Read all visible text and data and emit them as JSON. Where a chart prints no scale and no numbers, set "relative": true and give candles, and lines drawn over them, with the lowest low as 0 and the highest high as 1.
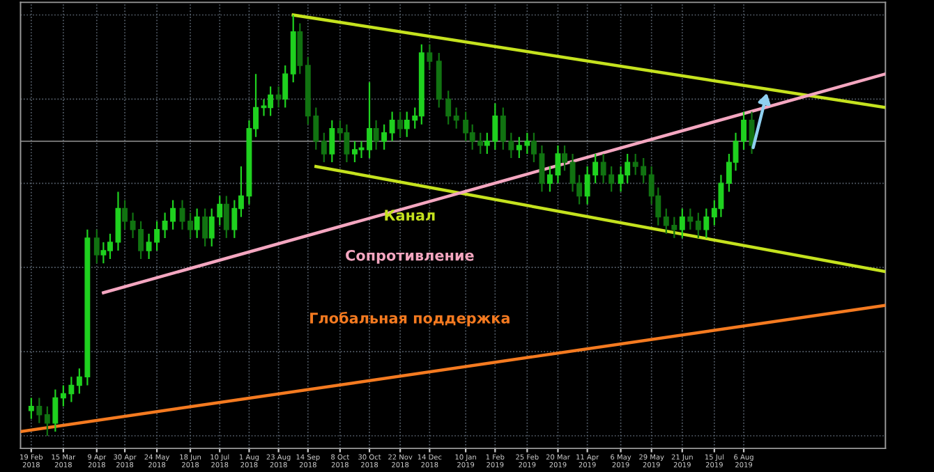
{
  "chart_data": {
    "type": "candlestick",
    "relative": true,
    "colors": [
      "#1fd11f",
      "#117311",
      "#117311",
      "#1fd11f",
      "#1fd11f",
      "#1fd11f",
      "#1fd11f",
      "#1fd11f",
      "#117311",
      "#1fd11f",
      "#1fd11f",
      "#1fd11f",
      "#117311",
      "#117311",
      "#117311",
      "#1fd11f",
      "#1fd11f",
      "#1fd11f",
      "#1fd11f",
      "#117311",
      "#117311",
      "#1fd11f",
      "#117311",
      "#1fd11f",
      "#1fd11f",
      "#117311",
      "#1fd11f",
      "#1fd11f",
      "#1fd11f",
      "#1fd11f",
      "#1fd11f",
      "#1fd11f",
      "#117311",
      "#1fd11f",
      "#1fd11f",
      "#117311",
      "#117311",
      "#117311",
      "#117311",
      "#1fd11f",
      "#117311",
      "#117311",
      "#1fd11f",
      "#1fd11f",
      "#1fd11f",
      "#117311",
      "#1fd11f",
      "#1fd11f",
      "#117311",
      "#1fd11f",
      "#1fd11f",
      "#1fd11f",
      "#117311",
      "#117311",
      "#117311",
      "#117311",
      "#117311",
      "#117311",
      "#117311",
      "#1fd11f",
      "#1fd11f",
      "#117311",
      "#117311",
      "#1fd11f",
      "#1fd11f",
      "#117311",
      "#117311",
      "#1fd11f",
      "#1fd11f",
      "#117311",
      "#117311",
      "#117311",
      "#1fd11f",
      "#1fd11f",
      "#117311",
      "#117311",
      "#1fd11f",
      "#1fd11f",
      "#117311",
      "#117311",
      "#117311",
      "#117311",
      "#117311",
      "#117311",
      "#1fd11f",
      "#117311",
      "#117311",
      "#1fd11f",
      "#1fd11f",
      "#1fd11f",
      "#1fd11f",
      "#1fd11f",
      "#1fd11f",
      "#117311"
    ],
    "x": [
      "2018-02-19",
      "2018-02-25",
      "2018-03-03",
      "2018-03-09",
      "2018-03-15",
      "2018-03-21",
      "2018-03-27",
      "2018-04-02",
      "2018-04-09",
      "2018-04-14",
      "2018-04-19",
      "2018-04-25",
      "2018-04-30",
      "2018-05-06",
      "2018-05-12",
      "2018-05-18",
      "2018-05-24",
      "2018-05-30",
      "2018-06-05",
      "2018-06-12",
      "2018-06-18",
      "2018-06-23",
      "2018-06-29",
      "2018-07-04",
      "2018-07-10",
      "2018-07-15",
      "2018-07-21",
      "2018-07-26",
      "2018-08-01",
      "2018-08-06",
      "2018-08-12",
      "2018-08-17",
      "2018-08-23",
      "2018-08-28",
      "2018-09-03",
      "2018-09-08",
      "2018-09-14",
      "2018-09-20",
      "2018-09-26",
      "2018-10-02",
      "2018-10-08",
      "2018-10-13",
      "2018-10-19",
      "2018-10-24",
      "2018-10-30",
      "2018-11-04",
      "2018-11-10",
      "2018-11-16",
      "2018-11-22",
      "2018-11-27",
      "2018-12-03",
      "2018-12-08",
      "2018-12-14",
      "2018-12-21",
      "2018-12-28",
      "2019-01-03",
      "2019-01-10",
      "2019-01-15",
      "2019-01-21",
      "2019-01-26",
      "2019-02-01",
      "2019-02-07",
      "2019-02-13",
      "2019-02-19",
      "2019-02-25",
      "2019-03-02",
      "2019-03-08",
      "2019-03-14",
      "2019-03-20",
      "2019-03-25",
      "2019-03-31",
      "2019-04-05",
      "2019-04-11",
      "2019-04-17",
      "2019-04-23",
      "2019-04-29",
      "2019-05-06",
      "2019-05-11",
      "2019-05-17",
      "2019-05-23",
      "2019-05-29",
      "2019-06-03",
      "2019-06-09",
      "2019-06-15",
      "2019-06-21",
      "2019-06-27",
      "2019-07-03",
      "2019-07-09",
      "2019-07-15",
      "2019-07-20",
      "2019-07-26",
      "2019-07-31",
      "2019-08-06",
      "2019-08-12"
    ],
    "ohlc": [
      [
        0.06,
        0.09,
        0.04,
        0.07
      ],
      [
        0.07,
        0.09,
        0.03,
        0.05
      ],
      [
        0.05,
        0.07,
        0.0,
        0.03
      ],
      [
        0.03,
        0.11,
        0.01,
        0.09
      ],
      [
        0.09,
        0.12,
        0.07,
        0.1
      ],
      [
        0.1,
        0.14,
        0.08,
        0.12
      ],
      [
        0.12,
        0.16,
        0.1,
        0.14
      ],
      [
        0.14,
        0.49,
        0.12,
        0.47
      ],
      [
        0.47,
        0.49,
        0.41,
        0.43
      ],
      [
        0.43,
        0.46,
        0.41,
        0.44
      ],
      [
        0.44,
        0.48,
        0.42,
        0.46
      ],
      [
        0.46,
        0.58,
        0.44,
        0.54
      ],
      [
        0.54,
        0.56,
        0.49,
        0.51
      ],
      [
        0.51,
        0.53,
        0.47,
        0.49
      ],
      [
        0.49,
        0.51,
        0.42,
        0.44
      ],
      [
        0.44,
        0.48,
        0.42,
        0.46
      ],
      [
        0.46,
        0.51,
        0.44,
        0.49
      ],
      [
        0.49,
        0.53,
        0.47,
        0.51
      ],
      [
        0.51,
        0.56,
        0.49,
        0.54
      ],
      [
        0.54,
        0.56,
        0.49,
        0.51
      ],
      [
        0.51,
        0.53,
        0.47,
        0.49
      ],
      [
        0.49,
        0.54,
        0.47,
        0.52
      ],
      [
        0.52,
        0.54,
        0.45,
        0.47
      ],
      [
        0.47,
        0.54,
        0.45,
        0.52
      ],
      [
        0.52,
        0.57,
        0.5,
        0.55
      ],
      [
        0.55,
        0.57,
        0.47,
        0.49
      ],
      [
        0.49,
        0.56,
        0.47,
        0.54
      ],
      [
        0.54,
        0.64,
        0.52,
        0.57
      ],
      [
        0.57,
        0.75,
        0.55,
        0.73
      ],
      [
        0.73,
        0.86,
        0.71,
        0.78
      ],
      [
        0.78,
        0.8,
        0.76,
        0.78
      ],
      [
        0.78,
        0.83,
        0.76,
        0.81
      ],
      [
        0.81,
        0.83,
        0.78,
        0.8
      ],
      [
        0.8,
        0.88,
        0.78,
        0.86
      ],
      [
        0.86,
        1.0,
        0.84,
        0.96
      ],
      [
        0.96,
        0.98,
        0.86,
        0.88
      ],
      [
        0.88,
        0.9,
        0.74,
        0.76
      ],
      [
        0.76,
        0.78,
        0.68,
        0.7
      ],
      [
        0.7,
        0.72,
        0.65,
        0.67
      ],
      [
        0.67,
        0.75,
        0.65,
        0.73
      ],
      [
        0.73,
        0.75,
        0.7,
        0.72
      ],
      [
        0.72,
        0.74,
        0.65,
        0.67
      ],
      [
        0.67,
        0.7,
        0.65,
        0.68
      ],
      [
        0.68,
        0.7,
        0.66,
        0.68
      ],
      [
        0.68,
        0.84,
        0.66,
        0.73
      ],
      [
        0.73,
        0.75,
        0.68,
        0.7
      ],
      [
        0.7,
        0.74,
        0.68,
        0.72
      ],
      [
        0.72,
        0.77,
        0.7,
        0.75
      ],
      [
        0.75,
        0.77,
        0.71,
        0.73
      ],
      [
        0.73,
        0.77,
        0.71,
        0.75
      ],
      [
        0.75,
        0.78,
        0.73,
        0.76
      ],
      [
        0.76,
        0.93,
        0.74,
        0.91
      ],
      [
        0.91,
        0.93,
        0.87,
        0.89
      ],
      [
        0.89,
        0.91,
        0.78,
        0.8
      ],
      [
        0.8,
        0.82,
        0.74,
        0.76
      ],
      [
        0.76,
        0.78,
        0.73,
        0.75
      ],
      [
        0.75,
        0.77,
        0.7,
        0.72
      ],
      [
        0.72,
        0.74,
        0.68,
        0.7
      ],
      [
        0.7,
        0.72,
        0.67,
        0.69
      ],
      [
        0.69,
        0.72,
        0.67,
        0.7
      ],
      [
        0.7,
        0.79,
        0.68,
        0.76
      ],
      [
        0.76,
        0.78,
        0.68,
        0.7
      ],
      [
        0.7,
        0.72,
        0.66,
        0.68
      ],
      [
        0.68,
        0.71,
        0.66,
        0.69
      ],
      [
        0.69,
        0.72,
        0.67,
        0.7
      ],
      [
        0.7,
        0.72,
        0.65,
        0.67
      ],
      [
        0.67,
        0.69,
        0.58,
        0.6
      ],
      [
        0.6,
        0.64,
        0.58,
        0.62
      ],
      [
        0.62,
        0.69,
        0.6,
        0.67
      ],
      [
        0.67,
        0.69,
        0.63,
        0.65
      ],
      [
        0.65,
        0.67,
        0.58,
        0.6
      ],
      [
        0.6,
        0.62,
        0.55,
        0.57
      ],
      [
        0.57,
        0.64,
        0.55,
        0.62
      ],
      [
        0.62,
        0.67,
        0.6,
        0.65
      ],
      [
        0.65,
        0.67,
        0.6,
        0.62
      ],
      [
        0.62,
        0.64,
        0.58,
        0.6
      ],
      [
        0.6,
        0.64,
        0.58,
        0.62
      ],
      [
        0.62,
        0.67,
        0.6,
        0.65
      ],
      [
        0.65,
        0.67,
        0.62,
        0.64
      ],
      [
        0.64,
        0.66,
        0.6,
        0.62
      ],
      [
        0.62,
        0.64,
        0.55,
        0.57
      ],
      [
        0.57,
        0.59,
        0.5,
        0.52
      ],
      [
        0.52,
        0.54,
        0.48,
        0.5
      ],
      [
        0.5,
        0.52,
        0.47,
        0.49
      ],
      [
        0.49,
        0.54,
        0.47,
        0.52
      ],
      [
        0.52,
        0.54,
        0.49,
        0.51
      ],
      [
        0.51,
        0.53,
        0.47,
        0.49
      ],
      [
        0.49,
        0.54,
        0.47,
        0.52
      ],
      [
        0.52,
        0.56,
        0.5,
        0.54
      ],
      [
        0.54,
        0.62,
        0.52,
        0.6
      ],
      [
        0.6,
        0.67,
        0.58,
        0.65
      ],
      [
        0.65,
        0.72,
        0.63,
        0.7
      ],
      [
        0.7,
        0.77,
        0.68,
        0.75
      ],
      [
        0.75,
        0.77,
        0.67,
        0.69
      ]
    ],
    "series": [
      {
        "type": "line",
        "name": "Канал",
        "color": "#c5e21e",
        "x": [
          "2018-09-03",
          "2019-11-20"
        ],
        "values": [
          1.0,
          0.78
        ]
      },
      {
        "type": "line",
        "color": "#c5e21e",
        "x": [
          "2018-09-20",
          "2019-11-20"
        ],
        "values": [
          0.64,
          0.39
        ]
      },
      {
        "type": "line",
        "name": "Сопротивление",
        "color": "#f4a6c0",
        "x": [
          "2018-04-14",
          "2019-11-20"
        ],
        "values": [
          0.34,
          0.86
        ]
      },
      {
        "type": "line",
        "name": "Глобальная поддержка",
        "color": "#f47a20",
        "x": [
          "2018-02-11",
          "2019-11-20"
        ],
        "values": [
          0.01,
          0.31
        ]
      }
    ],
    "ref_lines": [
      {
        "axis": "y",
        "value": 0.7,
        "label": null,
        "color": "#808080"
      }
    ],
    "xlim": [
      "2018-02-11",
      "2019-11-20"
    ],
    "xticks": [
      {
        "value": "2018-02-19",
        "label": "19 Feb 2018"
      },
      {
        "value": "2018-03-15",
        "label": "15 Mar 2018"
      },
      {
        "value": "2018-04-09",
        "label": "9 Apr 2018"
      },
      {
        "value": "2018-04-30",
        "label": "30 Apr 2018"
      },
      {
        "value": "2018-05-24",
        "label": "24 May 2018"
      },
      {
        "value": "2018-06-18",
        "label": "18 Jun 2018"
      },
      {
        "value": "2018-07-10",
        "label": "10 Jul 2018"
      },
      {
        "value": "2018-08-01",
        "label": "1 Aug 2018"
      },
      {
        "value": "2018-08-23",
        "label": "23 Aug 2018"
      },
      {
        "value": "2018-09-14",
        "label": "14 Sep 2018"
      },
      {
        "value": "2018-10-08",
        "label": "8 Oct 2018"
      },
      {
        "value": "2018-10-30",
        "label": "30 Oct 2018"
      },
      {
        "value": "2018-11-22",
        "label": "22 Nov 2018"
      },
      {
        "value": "2018-12-14",
        "label": "14 Dec 2018"
      },
      {
        "value": "2019-01-10",
        "label": "10 Jan 2019"
      },
      {
        "value": "2019-02-01",
        "label": "1 Feb 2019"
      },
      {
        "value": "2019-02-25",
        "label": "25 Feb 2019"
      },
      {
        "value": "2019-03-20",
        "label": "20 Mar 2019"
      },
      {
        "value": "2019-04-11",
        "label": "11 Apr 2019"
      },
      {
        "value": "2019-05-06",
        "label": "6 May 2019"
      },
      {
        "value": "2019-05-29",
        "label": "29 May 2019"
      },
      {
        "value": "2019-06-21",
        "label": "21 Jun 2019"
      },
      {
        "value": "2019-07-15",
        "label": "15 Jul 2019"
      },
      {
        "value": "2019-08-06",
        "label": "6 Aug 2019"
      }
    ],
    "tick_labels": "x",
    "grid": true
  }
}
